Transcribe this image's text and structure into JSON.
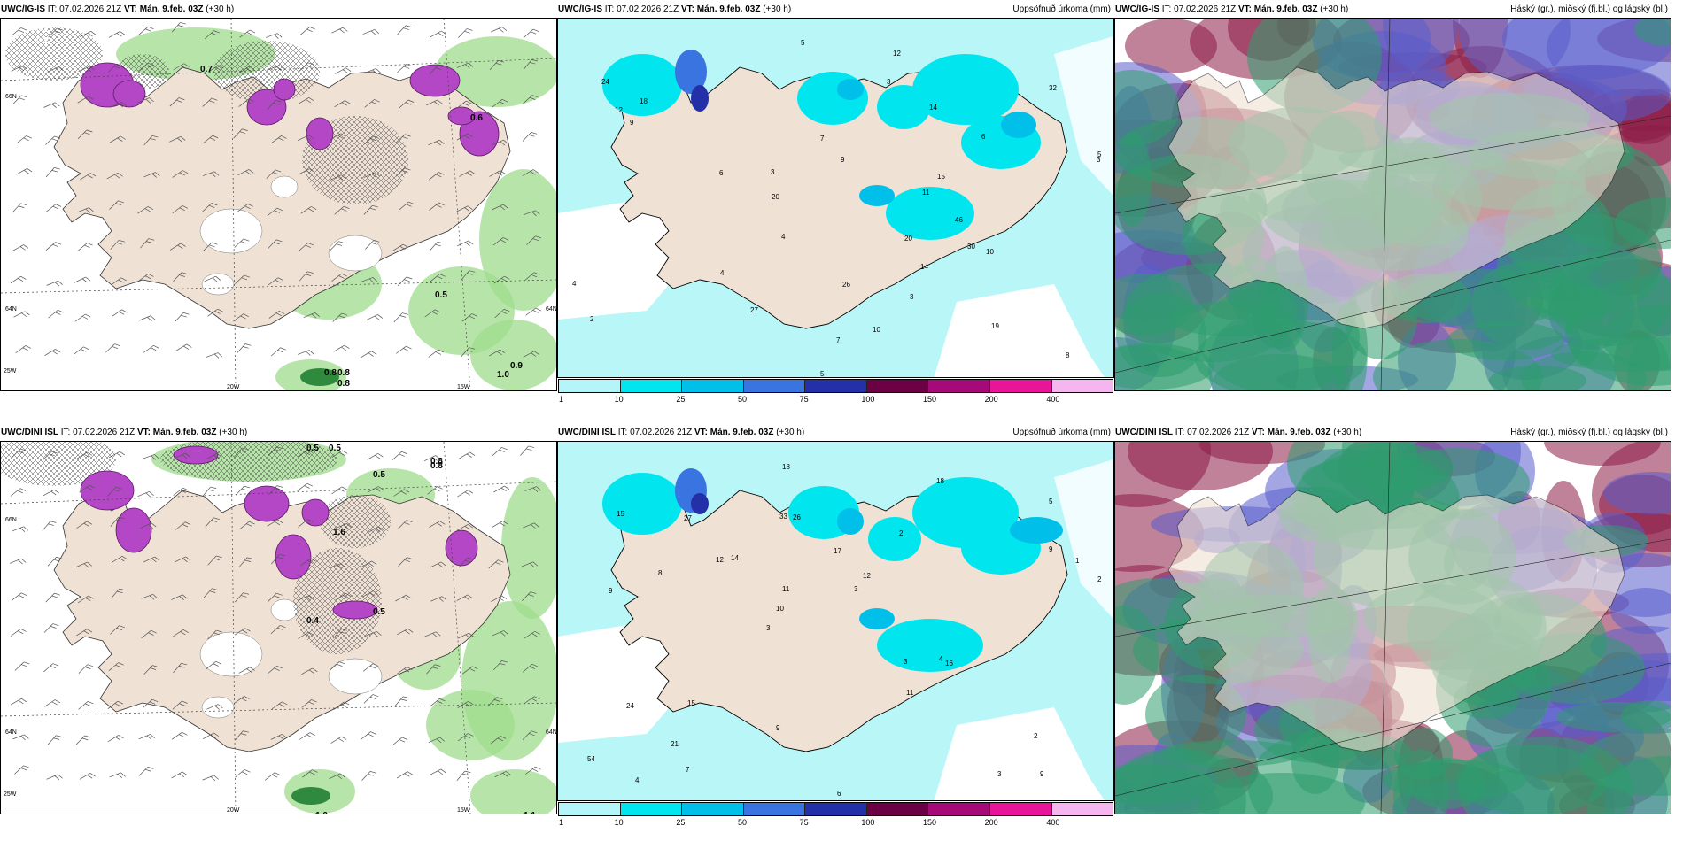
{
  "panels": [
    {
      "model": "UWC/IG-IS",
      "it_label": "IT:",
      "it_value": "07.02.2026 21Z",
      "vt_label": "VT:",
      "vt_value": "Mán. 9.feb. 03Z",
      "lead": "(+30 h)",
      "right_title": "",
      "type": "wind-precip",
      "labels": [
        "0.2",
        "0.2",
        "0.7",
        "0.5",
        "0.8",
        "0.8",
        "0.8",
        "1.0",
        "0.9",
        "0.6"
      ],
      "axis": [
        "20W",
        "15W",
        "66N",
        "64N",
        "25W",
        "64N"
      ]
    },
    {
      "model": "UWC/IG-IS",
      "it_label": "IT:",
      "it_value": "07.02.2026 21Z",
      "vt_label": "VT:",
      "vt_value": "Mán. 9.feb. 03Z",
      "lead": "(+30 h)",
      "right_title": "Uppsöfnuð úrkoma (mm)",
      "type": "accum",
      "labels": [
        "12",
        "7",
        "4",
        "11",
        "5",
        "2",
        "3",
        "3",
        "4",
        "12",
        "20",
        "26",
        "9",
        "5",
        "32",
        "19",
        "27",
        "9",
        "7",
        "14",
        "14",
        "5",
        "10",
        "15",
        "18",
        "3",
        "8",
        "6",
        "3",
        "46",
        "30",
        "24",
        "4",
        "20",
        "10",
        "6"
      ]
    },
    {
      "model": "UWC/IG-IS",
      "it_label": "IT:",
      "it_value": "07.02.2026 21Z",
      "vt_label": "VT:",
      "vt_value": "Mán. 9.feb. 03Z",
      "lead": "(+30 h)",
      "right_title": "Háský (gr.), miðský (fj.bl.) og lágský (bl.)",
      "type": "clouds"
    },
    {
      "model": "UWC/DINI ISL",
      "it_label": "IT:",
      "it_value": "07.02.2026 21Z",
      "vt_label": "VT:",
      "vt_value": "Mán. 9.feb. 03Z",
      "lead": "(+30 h)",
      "right_title": "",
      "type": "wind-precip",
      "labels": [
        "0.5",
        "0.5",
        "0.8",
        "0.5",
        "1.6",
        "0.5",
        "0.8",
        "1.1",
        "1.0",
        "0.4"
      ],
      "axis": [
        "20W",
        "15W",
        "66N",
        "64N",
        "25W",
        "64N"
      ]
    },
    {
      "model": "UWC/DINI ISL",
      "it_label": "IT:",
      "it_value": "07.02.2026 21Z",
      "vt_label": "VT:",
      "vt_value": "Mán. 9.feb. 03Z",
      "lead": "(+30 h)",
      "right_title": "Uppsöfnuð úrkoma (mm)",
      "type": "accum",
      "labels": [
        "9",
        "9",
        "5",
        "3",
        "2",
        "4",
        "33",
        "17",
        "24",
        "14",
        "54",
        "21",
        "26",
        "12",
        "16",
        "15",
        "18",
        "2",
        "3",
        "9",
        "10",
        "9",
        "11",
        "27",
        "18",
        "15",
        "3",
        "2",
        "4",
        "6",
        "12",
        "8",
        "11",
        "7",
        "1",
        "3"
      ]
    },
    {
      "model": "UWC/DINI ISL",
      "it_label": "IT:",
      "it_value": "07.02.2026 21Z",
      "vt_label": "VT:",
      "vt_value": "Mán. 9.feb. 03Z",
      "lead": "(+30 h)",
      "right_title": "Háský (gr.), miðský (fj.bl.) og lágský (bl.)",
      "type": "clouds"
    }
  ],
  "colorbar": {
    "colors": [
      "#b3f5f8",
      "#00e5ee",
      "#00bfe8",
      "#3a74e0",
      "#2330a8",
      "#6b0045",
      "#a60a78",
      "#e8159b",
      "#f5b6f0"
    ],
    "labels": [
      "1",
      "10",
      "25",
      "50",
      "75",
      "100",
      "150",
      "200",
      "400"
    ]
  },
  "colors": {
    "land": "#efe1d3",
    "sea_accum": "#b9f6f7",
    "precip_purple": "#b347c5",
    "precip_green": "#9fdc8c",
    "cloud_high": "#2e9c6e",
    "cloud_mid": "#5a5ccc",
    "cloud_low": "#8c1c46"
  }
}
